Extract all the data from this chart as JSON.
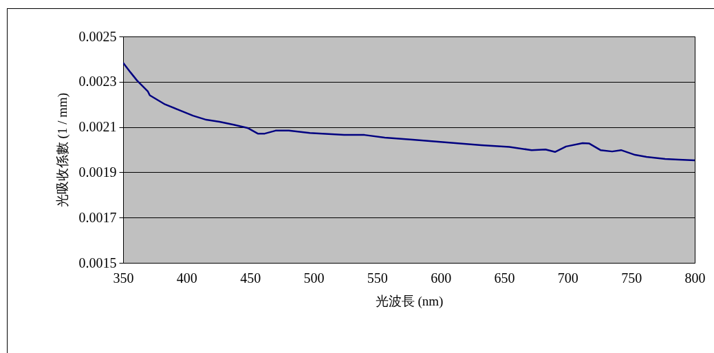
{
  "chart_data": {
    "type": "line",
    "xlabel": "光波長 (nm)",
    "ylabel": "光吸收係數 (1 / mm)",
    "xlim": [
      350,
      800
    ],
    "xticks": [
      350,
      400,
      450,
      500,
      550,
      600,
      650,
      700,
      750,
      800
    ],
    "ylim": [
      0.0015,
      0.0025
    ],
    "yticks": [
      0.0015,
      0.0017,
      0.0019,
      0.0021,
      0.0023,
      0.0025
    ],
    "grid": "y",
    "series": [
      {
        "color": "#000080",
        "x": [
          350,
          356,
          361,
          369.5,
          371,
          383,
          394,
          405,
          415.5,
          426,
          437,
          448,
          456,
          461.5,
          470,
          480.5,
          497,
          524,
          540,
          556,
          578,
          605,
          632,
          654,
          671.6,
          682.5,
          690,
          698.7,
          711.7,
          717,
          725.8,
          735,
          742,
          753,
          762,
          776.7,
          787.5,
          800
        ],
        "values": [
          0.002384,
          0.00234,
          0.002305,
          0.002257,
          0.00224,
          0.0022,
          0.002175,
          0.00215,
          0.002132,
          0.002123,
          0.00211,
          0.002096,
          0.002071,
          0.002071,
          0.002084,
          0.002084,
          0.002074,
          0.002065,
          0.002065,
          0.002053,
          0.002044,
          0.002032,
          0.00202,
          0.002012,
          0.001998,
          0.002001,
          0.00199,
          0.002014,
          0.002029,
          0.002027,
          0.001998,
          0.001992,
          0.001998,
          0.001977,
          0.001968,
          0.001959,
          0.001956,
          0.001953
        ]
      }
    ]
  }
}
